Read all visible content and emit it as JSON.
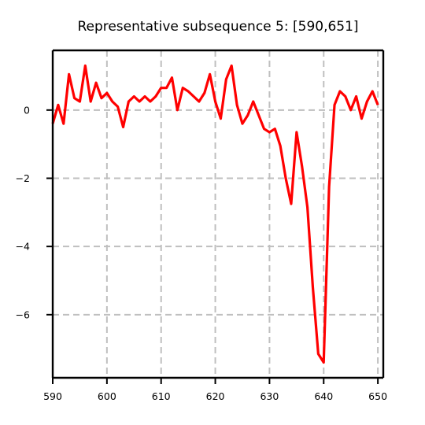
{
  "chart_data": {
    "type": "line",
    "title": "Representative subsequence 5: [590,651]",
    "xlabel": "",
    "ylabel": "",
    "xlim": [
      590,
      651
    ],
    "ylim": [
      -7.85,
      1.75
    ],
    "xticks": [
      590,
      600,
      610,
      620,
      630,
      640,
      650
    ],
    "yticks": [
      0,
      -2,
      -4,
      -6
    ],
    "ytick_labels": [
      "0",
      "−2",
      "−4",
      "−6"
    ],
    "grid": true,
    "line_color": "#ff0000",
    "x": [
      590,
      591,
      592,
      593,
      594,
      595,
      596,
      597,
      598,
      599,
      600,
      601,
      602,
      603,
      604,
      605,
      606,
      607,
      608,
      609,
      610,
      611,
      612,
      613,
      614,
      615,
      616,
      617,
      618,
      619,
      620,
      621,
      622,
      623,
      624,
      625,
      626,
      627,
      628,
      629,
      630,
      631,
      632,
      633,
      634,
      635,
      636,
      637,
      638,
      639,
      640,
      641,
      642,
      643,
      644,
      645,
      646,
      647,
      648,
      649,
      650
    ],
    "y": [
      -0.4,
      0.15,
      -0.4,
      1.05,
      0.35,
      0.25,
      1.3,
      0.25,
      0.8,
      0.35,
      0.5,
      0.25,
      0.1,
      -0.5,
      0.25,
      0.4,
      0.25,
      0.4,
      0.25,
      0.4,
      0.65,
      0.65,
      0.95,
      0.0,
      0.65,
      0.55,
      0.4,
      0.25,
      0.5,
      1.05,
      0.25,
      -0.25,
      0.9,
      1.3,
      0.15,
      -0.4,
      -0.15,
      0.25,
      -0.15,
      -0.55,
      -0.65,
      -0.55,
      -1.05,
      -2.0,
      -2.75,
      -0.65,
      -1.65,
      -2.85,
      -5.2,
      -7.15,
      -7.4,
      -2.25,
      0.15,
      0.55,
      0.4,
      0.0,
      0.4,
      -0.25,
      0.25,
      0.55,
      0.15
    ]
  }
}
